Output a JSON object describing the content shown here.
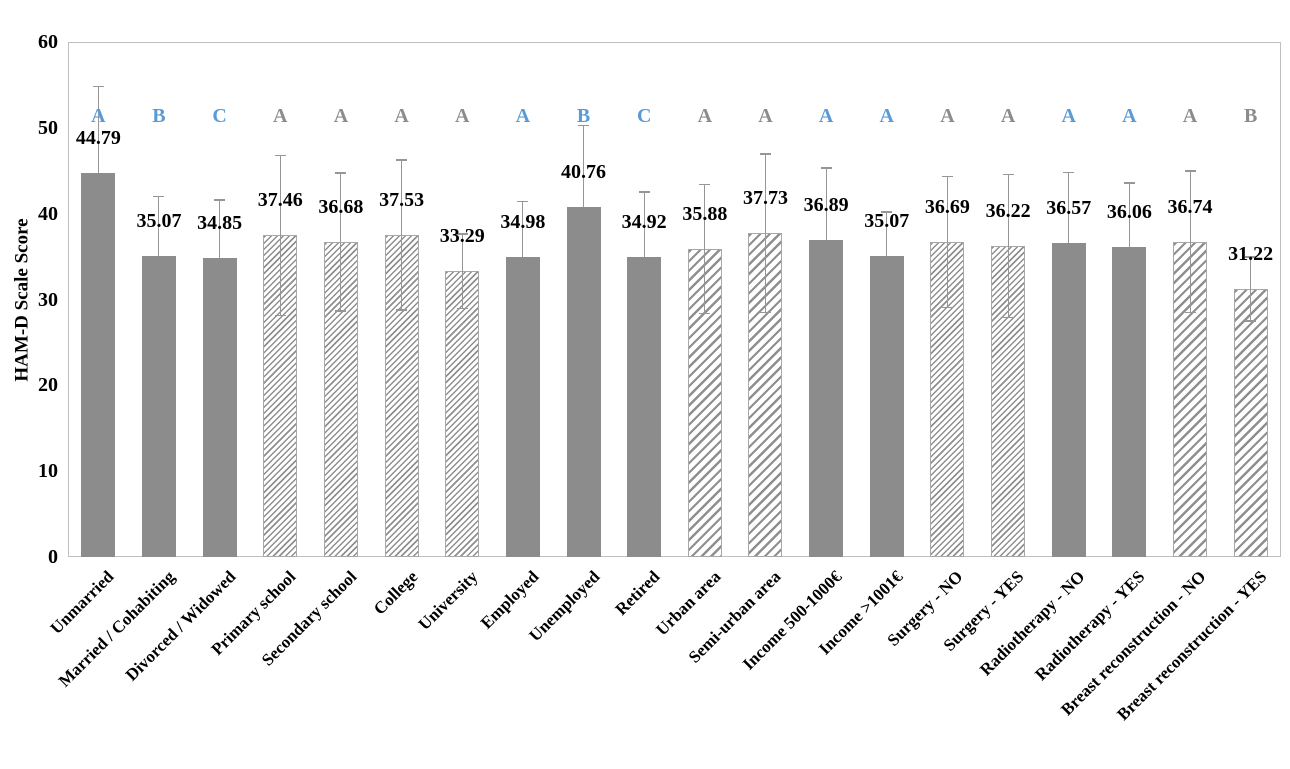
{
  "chart_data": {
    "type": "bar",
    "title": "",
    "xlabel": "",
    "ylabel": "HAM-D Scale Score",
    "ylim": [
      0,
      60
    ],
    "yticks": [
      0,
      10,
      20,
      30,
      40,
      50,
      60
    ],
    "grid": false,
    "legend": false,
    "categories": [
      "Unmarried",
      "Married / Cohabiting",
      "Divorced / Widowed",
      "Primary school",
      "Secondary school",
      "College",
      "University",
      "Employed",
      "Unemployed",
      "Retired",
      "Urban area",
      "Semi-urban area",
      "Income 500-1000€",
      "Income >1001€",
      "Surgery - NO",
      "Surgery - YES",
      "Radiotherapy - NO",
      "Radiotherapy - YES",
      "Breast reconstruction - NO",
      "Breast reconstruction - YES"
    ],
    "values": [
      44.79,
      35.07,
      34.85,
      37.46,
      36.68,
      37.53,
      33.29,
      34.98,
      40.76,
      34.92,
      35.88,
      37.73,
      36.89,
      35.07,
      36.69,
      36.22,
      36.57,
      36.06,
      36.74,
      31.22
    ],
    "errors_sd": [
      10.0,
      6.9,
      6.7,
      9.3,
      8.0,
      8.7,
      4.3,
      6.4,
      9.5,
      7.6,
      7.5,
      9.2,
      8.4,
      5.1,
      7.6,
      8.3,
      8.2,
      7.5,
      8.2,
      3.7
    ],
    "significance_letters": [
      "A",
      "B",
      "C",
      "A",
      "A",
      "A",
      "A",
      "A",
      "B",
      "C",
      "A",
      "A",
      "A",
      "A",
      "A",
      "A",
      "A",
      "A",
      "A",
      "B"
    ],
    "letter_colors": [
      "blue",
      "blue",
      "blue",
      "gray",
      "gray",
      "gray",
      "gray",
      "blue",
      "blue",
      "blue",
      "gray",
      "gray",
      "blue",
      "blue",
      "gray",
      "gray",
      "blue",
      "blue",
      "gray",
      "gray"
    ],
    "bar_patterns": [
      "solid",
      "solid",
      "solid",
      "hatch-fine",
      "hatch-fine",
      "hatch-fine",
      "hatch-fine",
      "solid",
      "solid",
      "solid",
      "hatch-coarse",
      "hatch-coarse",
      "solid",
      "solid",
      "hatch-fine",
      "hatch-fine",
      "solid",
      "solid",
      "hatch-coarse",
      "hatch-coarse"
    ]
  },
  "colors": {
    "bar_fill": "#8C8C8C",
    "hatch_line": "#8F8F8F",
    "hatch_background": "#FFFFFF",
    "hatch_border": "#A8A8A8",
    "error_bar": "#969696",
    "letter_blue": "#5B9BD5",
    "letter_gray": "#8C8C8C",
    "axis_line": "#BFBFBF",
    "text": "#000000",
    "background": "#FFFFFF"
  }
}
